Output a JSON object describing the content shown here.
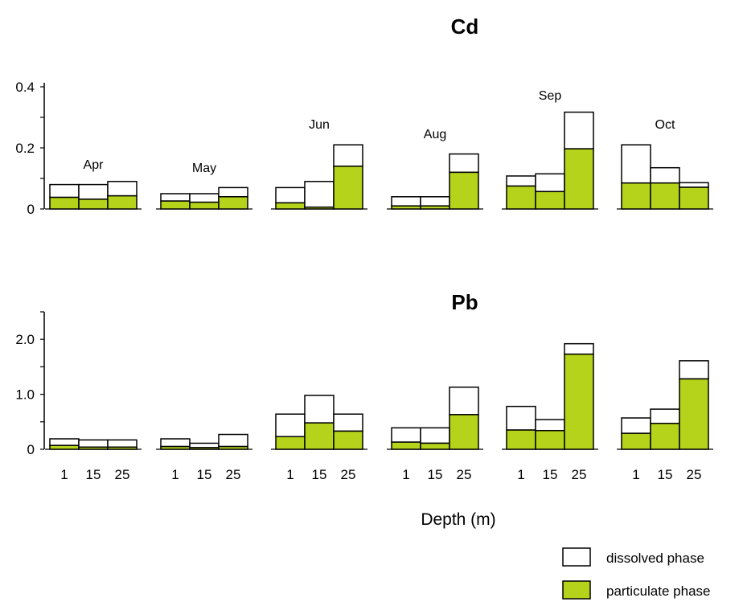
{
  "chart_data": [
    {
      "type": "bar",
      "title": "Cd",
      "stacked": true,
      "groups": [
        "Apr",
        "May",
        "Jun",
        "Aug",
        "Sep",
        "Oct"
      ],
      "categories": [
        "1",
        "15",
        "25"
      ],
      "ylim": [
        0,
        0.4
      ],
      "yticks": [
        "0",
        "0.2",
        "0.4"
      ],
      "ytick_values": [
        0,
        0.2,
        0.4
      ],
      "series": [
        {
          "name": "particulate phase",
          "values": [
            [
              0.038,
              0.032,
              0.043
            ],
            [
              0.026,
              0.022,
              0.04
            ],
            [
              0.02,
              0.006,
              0.14
            ],
            [
              0.01,
              0.01,
              0.12
            ],
            [
              0.075,
              0.057,
              0.197
            ],
            [
              0.085,
              0.085,
              0.071
            ]
          ]
        },
        {
          "name": "dissolved phase",
          "values": [
            [
              0.042,
              0.048,
              0.047
            ],
            [
              0.024,
              0.028,
              0.03
            ],
            [
              0.05,
              0.084,
              0.07
            ],
            [
              0.03,
              0.03,
              0.06
            ],
            [
              0.033,
              0.058,
              0.12
            ],
            [
              0.125,
              0.05,
              0.015
            ]
          ]
        }
      ]
    },
    {
      "type": "bar",
      "title": "Pb",
      "stacked": true,
      "groups": [
        "Apr",
        "May",
        "Jun",
        "Aug",
        "Sep",
        "Oct"
      ],
      "categories": [
        "1",
        "15",
        "25"
      ],
      "ylim": [
        0,
        2.5
      ],
      "yticks": [
        "0",
        "1.0",
        "2.0"
      ],
      "ytick_values": [
        0,
        1.0,
        2.0
      ],
      "xlabel": "Depth (m)",
      "series": [
        {
          "name": "particulate phase",
          "values": [
            [
              0.07,
              0.04,
              0.04
            ],
            [
              0.05,
              0.03,
              0.05
            ],
            [
              0.23,
              0.48,
              0.33
            ],
            [
              0.13,
              0.11,
              0.63
            ],
            [
              0.35,
              0.34,
              1.73
            ],
            [
              0.29,
              0.47,
              1.28
            ]
          ]
        },
        {
          "name": "dissolved phase",
          "values": [
            [
              0.12,
              0.13,
              0.13
            ],
            [
              0.14,
              0.08,
              0.22
            ],
            [
              0.41,
              0.5,
              0.31
            ],
            [
              0.26,
              0.28,
              0.5
            ],
            [
              0.43,
              0.2,
              0.19
            ],
            [
              0.28,
              0.26,
              0.33
            ]
          ]
        }
      ]
    }
  ],
  "legend": {
    "placement": "bottom-right",
    "items": [
      {
        "label": "dissolved phase",
        "color": "#ffffff"
      },
      {
        "label": "particulate phase",
        "color": "#b5d31a"
      }
    ]
  },
  "colors": {
    "particulate": "#b5d31a",
    "dissolved": "#ffffff",
    "outline": "#000000"
  }
}
